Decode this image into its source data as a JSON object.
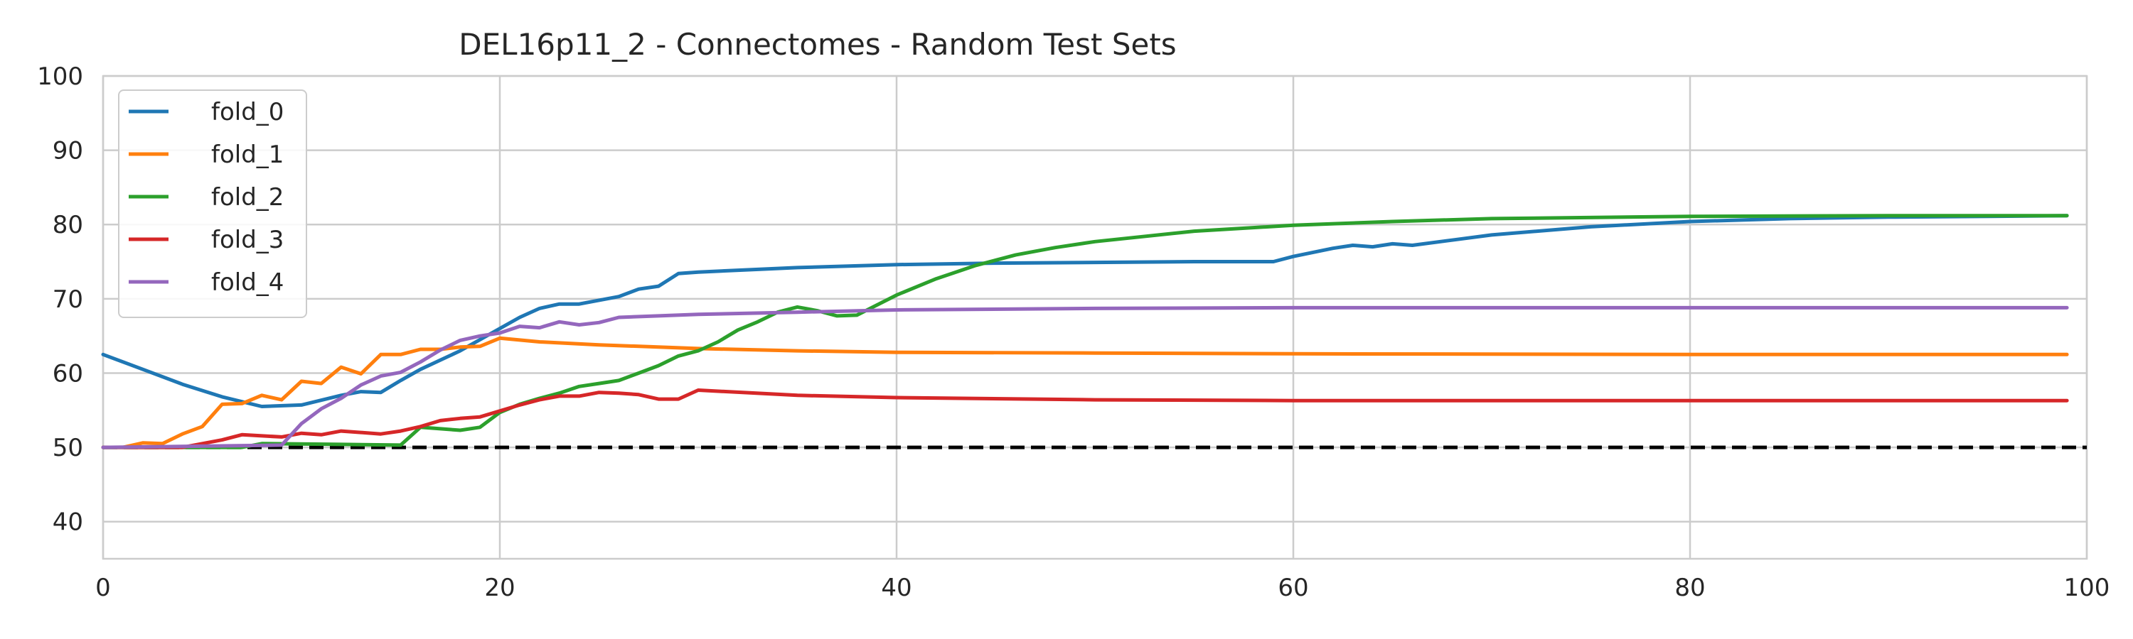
{
  "chart_data": {
    "type": "line",
    "title": "DEL16p11_2 - Connectomes - Random Test Sets",
    "xlabel": "",
    "ylabel": "",
    "xlim": [
      0,
      100
    ],
    "ylim": [
      35,
      100
    ],
    "xticks": [
      0,
      20,
      40,
      60,
      80,
      100
    ],
    "yticks": [
      40,
      50,
      60,
      70,
      80,
      90,
      100
    ],
    "grid": true,
    "legend": "top-left",
    "reference_line": {
      "y": 50,
      "style": "dashed",
      "color": "#000000"
    },
    "series": [
      {
        "name": "fold_0",
        "color": "#1f77b4",
        "points": [
          [
            0,
            62.5
          ],
          [
            2,
            60.5
          ],
          [
            4,
            58.5
          ],
          [
            6,
            56.8
          ],
          [
            8,
            55.5
          ],
          [
            10,
            55.7
          ],
          [
            12,
            57.0
          ],
          [
            13,
            57.5
          ],
          [
            14,
            57.4
          ],
          [
            15,
            59
          ],
          [
            16,
            60.5
          ],
          [
            18,
            63
          ],
          [
            20,
            66
          ],
          [
            21,
            67.5
          ],
          [
            22,
            68.7
          ],
          [
            23,
            69.3
          ],
          [
            24,
            69.3
          ],
          [
            25,
            69.8
          ],
          [
            26,
            70.3
          ],
          [
            27,
            71.3
          ],
          [
            28,
            71.7
          ],
          [
            29,
            73.4
          ],
          [
            30,
            73.6
          ],
          [
            35,
            74.2
          ],
          [
            40,
            74.6
          ],
          [
            45,
            74.8
          ],
          [
            50,
            74.9
          ],
          [
            55,
            75.0
          ],
          [
            59,
            75.0
          ],
          [
            60,
            75.7
          ],
          [
            62,
            76.8
          ],
          [
            63,
            77.2
          ],
          [
            64,
            77.0
          ],
          [
            65,
            77.4
          ],
          [
            66,
            77.2
          ],
          [
            68,
            77.9
          ],
          [
            70,
            78.6
          ],
          [
            75,
            79.7
          ],
          [
            80,
            80.4
          ],
          [
            85,
            80.8
          ],
          [
            90,
            81.0
          ],
          [
            95,
            81.1
          ],
          [
            99,
            81.2
          ]
        ]
      },
      {
        "name": "fold_1",
        "color": "#ff7f0e",
        "points": [
          [
            1,
            50.0
          ],
          [
            2,
            50.6
          ],
          [
            3,
            50.5
          ],
          [
            4,
            51.8
          ],
          [
            5,
            52.8
          ],
          [
            6,
            55.8
          ],
          [
            7,
            55.9
          ],
          [
            8,
            57.0
          ],
          [
            9,
            56.4
          ],
          [
            10,
            58.9
          ],
          [
            11,
            58.6
          ],
          [
            12,
            60.8
          ],
          [
            13,
            59.9
          ],
          [
            14,
            62.5
          ],
          [
            15,
            62.5
          ],
          [
            16,
            63.2
          ],
          [
            17,
            63.2
          ],
          [
            18,
            63.5
          ],
          [
            19,
            63.6
          ],
          [
            20,
            64.7
          ],
          [
            22,
            64.2
          ],
          [
            25,
            63.8
          ],
          [
            30,
            63.3
          ],
          [
            35,
            63.0
          ],
          [
            40,
            62.8
          ],
          [
            50,
            62.7
          ],
          [
            60,
            62.6
          ],
          [
            80,
            62.5
          ],
          [
            99,
            62.5
          ]
        ]
      },
      {
        "name": "fold_2",
        "color": "#2ca02c",
        "points": [
          [
            0,
            50.0
          ],
          [
            7,
            50.0
          ],
          [
            8,
            50.5
          ],
          [
            12,
            50.4
          ],
          [
            15,
            50.3
          ],
          [
            16,
            52.7
          ],
          [
            18,
            52.3
          ],
          [
            19,
            52.7
          ],
          [
            20,
            54.7
          ],
          [
            21,
            55.8
          ],
          [
            22,
            56.6
          ],
          [
            23,
            57.3
          ],
          [
            24,
            58.2
          ],
          [
            25,
            58.6
          ],
          [
            26,
            59.0
          ],
          [
            27,
            60.0
          ],
          [
            28,
            61.0
          ],
          [
            29,
            62.3
          ],
          [
            30,
            63.0
          ],
          [
            31,
            64.2
          ],
          [
            32,
            65.8
          ],
          [
            33,
            66.9
          ],
          [
            34,
            68.2
          ],
          [
            35,
            68.9
          ],
          [
            36,
            68.4
          ],
          [
            37,
            67.7
          ],
          [
            38,
            67.8
          ],
          [
            40,
            70.5
          ],
          [
            42,
            72.7
          ],
          [
            44,
            74.5
          ],
          [
            46,
            75.9
          ],
          [
            48,
            76.9
          ],
          [
            50,
            77.7
          ],
          [
            55,
            79.1
          ],
          [
            60,
            79.9
          ],
          [
            65,
            80.4
          ],
          [
            70,
            80.8
          ],
          [
            80,
            81.1
          ],
          [
            90,
            81.2
          ],
          [
            99,
            81.2
          ]
        ]
      },
      {
        "name": "fold_3",
        "color": "#d62728",
        "points": [
          [
            0,
            50.0
          ],
          [
            4,
            50.0
          ],
          [
            6,
            51.0
          ],
          [
            7,
            51.7
          ],
          [
            9,
            51.4
          ],
          [
            10,
            51.9
          ],
          [
            11,
            51.7
          ],
          [
            12,
            52.2
          ],
          [
            14,
            51.8
          ],
          [
            15,
            52.2
          ],
          [
            16,
            52.8
          ],
          [
            17,
            53.6
          ],
          [
            18,
            53.9
          ],
          [
            19,
            54.1
          ],
          [
            20,
            54.9
          ],
          [
            21,
            55.7
          ],
          [
            22,
            56.4
          ],
          [
            23,
            56.9
          ],
          [
            24,
            56.9
          ],
          [
            25,
            57.4
          ],
          [
            26,
            57.3
          ],
          [
            27,
            57.1
          ],
          [
            28,
            56.5
          ],
          [
            29,
            56.5
          ],
          [
            30,
            57.7
          ],
          [
            35,
            57.0
          ],
          [
            40,
            56.7
          ],
          [
            50,
            56.4
          ],
          [
            60,
            56.3
          ],
          [
            80,
            56.3
          ],
          [
            99,
            56.3
          ]
        ]
      },
      {
        "name": "fold_4",
        "color": "#9467bd",
        "points": [
          [
            0,
            50.0
          ],
          [
            9,
            50.3
          ],
          [
            10,
            53.2
          ],
          [
            11,
            55.2
          ],
          [
            12,
            56.6
          ],
          [
            13,
            58.4
          ],
          [
            14,
            59.6
          ],
          [
            15,
            60.1
          ],
          [
            16,
            61.5
          ],
          [
            17,
            63.1
          ],
          [
            18,
            64.4
          ],
          [
            19,
            65.0
          ],
          [
            20,
            65.4
          ],
          [
            21,
            66.3
          ],
          [
            22,
            66.1
          ],
          [
            23,
            66.9
          ],
          [
            24,
            66.5
          ],
          [
            25,
            66.8
          ],
          [
            26,
            67.5
          ],
          [
            28,
            67.7
          ],
          [
            30,
            67.9
          ],
          [
            35,
            68.2
          ],
          [
            40,
            68.5
          ],
          [
            50,
            68.7
          ],
          [
            60,
            68.8
          ],
          [
            80,
            68.8
          ],
          [
            99,
            68.8
          ]
        ]
      }
    ]
  }
}
